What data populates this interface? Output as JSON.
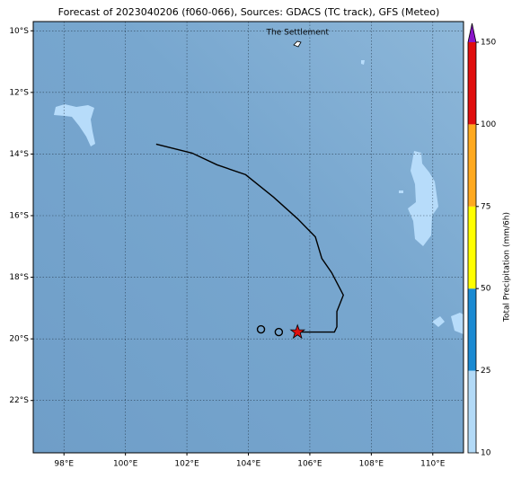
{
  "chart_data": {
    "type": "map",
    "title": "Forecast of 2023040206 (f060-066), Sources: GDACS (TC track), GFS (Meteo)",
    "xlim": [
      97,
      111
    ],
    "ylim": [
      -23.7,
      -9.7
    ],
    "xticks": [
      {
        "value": 98,
        "label": "98°E"
      },
      {
        "value": 100,
        "label": "100°E"
      },
      {
        "value": 102,
        "label": "102°E"
      },
      {
        "value": 104,
        "label": "104°E"
      },
      {
        "value": 106,
        "label": "106°E"
      },
      {
        "value": 108,
        "label": "108°E"
      },
      {
        "value": 110,
        "label": "110°E"
      }
    ],
    "yticks": [
      {
        "value": -10,
        "label": "10°S"
      },
      {
        "value": -12,
        "label": "12°S"
      },
      {
        "value": -14,
        "label": "14°S"
      },
      {
        "value": -16,
        "label": "16°S"
      },
      {
        "value": -18,
        "label": "18°S"
      },
      {
        "value": -20,
        "label": "20°S"
      },
      {
        "value": -22,
        "label": "22°S"
      }
    ],
    "grid": true,
    "track": {
      "color": "#000000",
      "x": [
        101.0,
        102.17,
        102.98,
        103.91,
        104.82,
        105.6,
        106.18,
        106.39,
        106.71,
        107.09,
        106.88,
        106.88,
        106.8,
        105.6
      ],
      "y": [
        -13.68,
        -13.97,
        -14.35,
        -14.67,
        -15.4,
        -16.1,
        -16.69,
        -17.39,
        -17.85,
        -18.58,
        -19.11,
        -19.61,
        -19.78,
        -19.78
      ]
    },
    "markers": [
      {
        "x": 104.41,
        "y": -19.69,
        "symbol": "circle"
      },
      {
        "x": 104.99,
        "y": -19.78,
        "symbol": "circle"
      },
      {
        "x": 105.6,
        "y": -19.78,
        "symbol": "star",
        "color": "#e01010"
      }
    ],
    "annotation": {
      "text": "The Settlement",
      "x": 105.6,
      "y": -10.05
    },
    "colorbar": {
      "label": "Total Precipitation (mm/6h)",
      "ticks": [
        10,
        25,
        50,
        75,
        100,
        150
      ],
      "colors": [
        "#b3daf7",
        "#1a8ad2",
        "#ffff00",
        "#ffa91f",
        "#e00e0e"
      ],
      "extend_color": "#8a16c8"
    }
  }
}
